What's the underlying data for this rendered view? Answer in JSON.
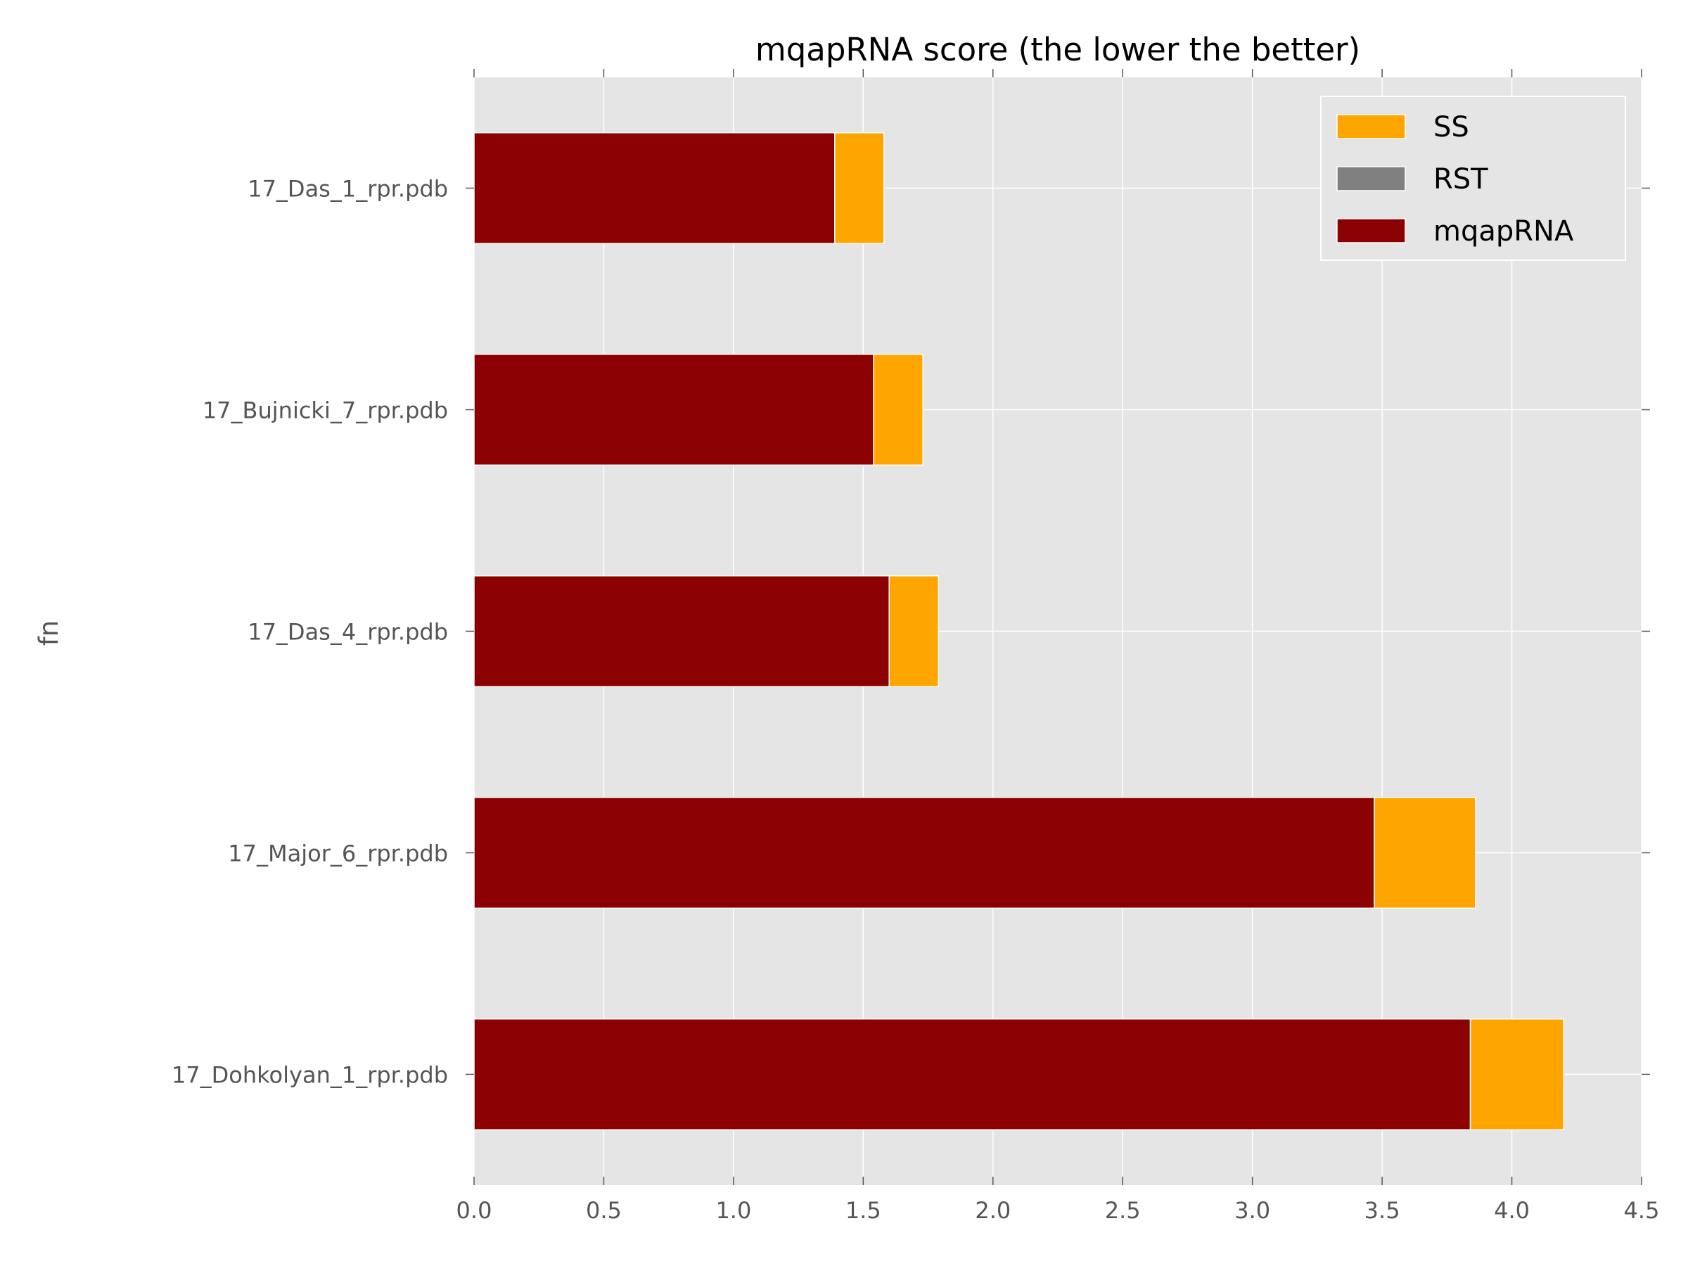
{
  "chart_data": {
    "type": "bar",
    "orientation": "horizontal",
    "stacked": true,
    "title": "mqapRNA score (the lower the better)",
    "xlabel": "",
    "ylabel": "fn",
    "xlim": [
      0,
      4.5
    ],
    "xticks": [
      "0.0",
      "0.5",
      "1.0",
      "1.5",
      "2.0",
      "2.5",
      "3.0",
      "3.5",
      "4.0",
      "4.5"
    ],
    "categories": [
      "17_Das_1_rpr.pdb",
      "17_Bujnicki_7_rpr.pdb",
      "17_Das_4_rpr.pdb",
      "17_Major_6_rpr.pdb",
      "17_Dohkolyan_1_rpr.pdb"
    ],
    "series": [
      {
        "name": "mqapRNA",
        "color": "#8b0000",
        "values": [
          1.39,
          1.54,
          1.6,
          3.47,
          3.84
        ]
      },
      {
        "name": "RST",
        "color": "#808080",
        "values": [
          0,
          0,
          0,
          0,
          0
        ]
      },
      {
        "name": "SS",
        "color": "#ffa500",
        "values": [
          0.19,
          0.19,
          0.19,
          0.39,
          0.36
        ]
      }
    ],
    "legend": {
      "placement": "top-right",
      "order": [
        "SS",
        "RST",
        "mqapRNA"
      ]
    },
    "grid": true,
    "background": "#e5e5e5"
  }
}
